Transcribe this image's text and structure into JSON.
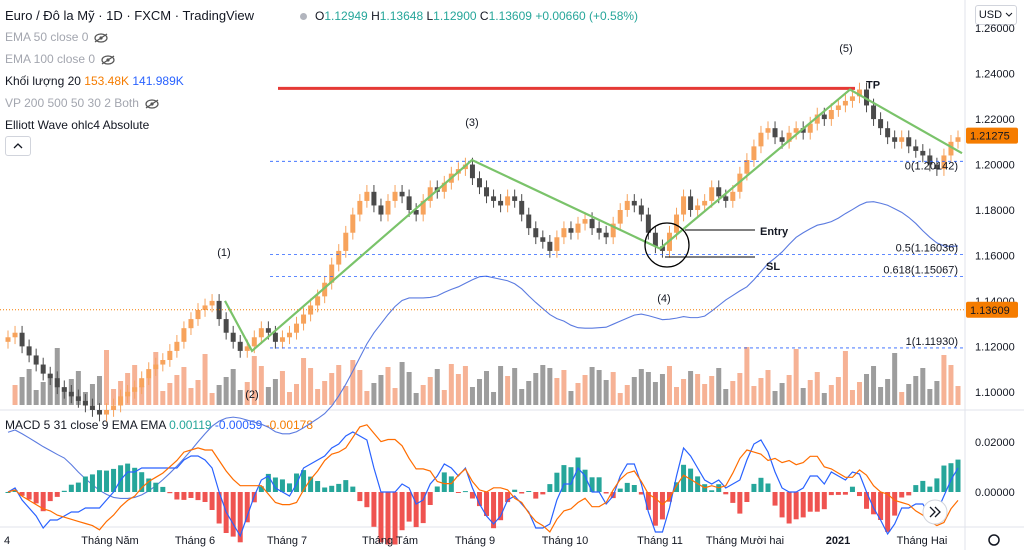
{
  "header": {
    "symbol": "Euro / Đô la Mỹ · 1D · FXCM · TradingView",
    "ohlc": {
      "o_label": "O",
      "o": "1.12949",
      "h_label": "H",
      "h": "1.13648",
      "l_label": "L",
      "l": "1.12900",
      "c_label": "C",
      "c": "1.13609",
      "change": "+0.00660 (+0.58%)"
    },
    "ema50": "EMA 50 close 0",
    "ema100": "EMA 100 close 0",
    "volume_label": "Khối lượng 20",
    "volume_val1": "153.48K",
    "volume_val2": "141.989K",
    "vp": "VP 200 500 50 30 2 Both",
    "elliott": "Elliott Wave ohlc4 Absolute",
    "collapse_icon": "chevron-up-icon"
  },
  "currency_button": "USD",
  "macd": {
    "label": "MACD 5 31 close 9 EMA EMA",
    "v1": "0.00119",
    "v2": "-0.00059",
    "v3": "-0.00178"
  },
  "colors": {
    "up": "#f7a35c",
    "down": "#4a4a4a",
    "wave": "#7ac36a",
    "tp_line": "#e53935",
    "fib": "#2962ff",
    "price_tag": "#f57c00",
    "macd_line": "#2962ff",
    "signal_line": "#ff6d00",
    "hist_up": "#26a69a",
    "hist_down": "#ef5350"
  },
  "chart_data": {
    "type": "candlestick",
    "price_axis": {
      "ticks": [
        "1.26000",
        "1.24000",
        "1.22000",
        "1.20000",
        "1.18000",
        "1.16000",
        "1.14000",
        "1.12000",
        "1.10000"
      ],
      "range": [
        1.092,
        1.268
      ]
    },
    "macd_axis": {
      "ticks": [
        "0.02000",
        "0.00000"
      ]
    },
    "x_ticks": [
      "4",
      "Tháng Năm",
      "Tháng 6",
      "Tháng 7",
      "Tháng Tám",
      "Tháng 9",
      "Tháng 10",
      "Tháng 11",
      "Tháng Mười hai",
      "2021",
      "Tháng Hai"
    ],
    "price_tags": [
      {
        "value": "1.21275",
        "color": "#f57c00"
      },
      {
        "value": "1.13609",
        "color": "#f57c00"
      }
    ],
    "wave_labels": [
      "(1)",
      "(2)",
      "(3)",
      "(4)",
      "(5)"
    ],
    "wave_points": [
      [
        1.088,
        1.14
      ],
      [
        1.117,
        1.118
      ],
      [
        1.226,
        1.202
      ],
      [
        1.392,
        1.163
      ],
      [
        1.648,
        1.233
      ],
      [
        1.8,
        1.205
      ]
    ],
    "tp": {
      "label": "TP",
      "value": 1.2335
    },
    "entry_label": "Entry",
    "sl_label": "SL",
    "fib_levels": [
      {
        "label": "0(1.20142)",
        "value": 1.20142
      },
      {
        "label": "0.5(1.16036)",
        "value": 1.16036
      },
      {
        "label": "0.618(1.15067)",
        "value": 1.15067
      },
      {
        "label": "1(1.11930)",
        "value": 1.1193
      }
    ],
    "close_series": [
      1.124,
      1.126,
      1.12,
      1.116,
      1.112,
      1.108,
      1.106,
      1.102,
      1.1,
      1.098,
      1.096,
      1.094,
      1.092,
      1.09,
      1.092,
      1.094,
      1.098,
      1.1,
      1.102,
      1.106,
      1.11,
      1.112,
      1.114,
      1.118,
      1.122,
      1.128,
      1.132,
      1.136,
      1.138,
      1.14,
      1.132,
      1.126,
      1.122,
      1.118,
      1.12,
      1.124,
      1.128,
      1.126,
      1.122,
      1.124,
      1.126,
      1.13,
      1.134,
      1.138,
      1.142,
      1.148,
      1.156,
      1.162,
      1.17,
      1.178,
      1.184,
      1.188,
      1.182,
      1.178,
      1.184,
      1.188,
      1.186,
      1.18,
      1.178,
      1.184,
      1.19,
      1.188,
      1.192,
      1.196,
      1.198,
      1.2,
      1.194,
      1.19,
      1.186,
      1.184,
      1.182,
      1.186,
      1.184,
      1.178,
      1.172,
      1.168,
      1.166,
      1.162,
      1.168,
      1.172,
      1.17,
      1.174,
      1.176,
      1.172,
      1.17,
      1.168,
      1.174,
      1.18,
      1.184,
      1.182,
      1.178,
      1.17,
      1.164,
      1.162,
      1.17,
      1.178,
      1.186,
      1.18,
      1.182,
      1.184,
      1.19,
      1.186,
      1.184,
      1.188,
      1.196,
      1.202,
      1.208,
      1.214,
      1.216,
      1.212,
      1.21,
      1.214,
      1.216,
      1.214,
      1.218,
      1.222,
      1.22,
      1.224,
      1.226,
      1.228,
      1.23,
      1.233,
      1.226,
      1.22,
      1.216,
      1.212,
      1.21,
      1.212,
      1.208,
      1.206,
      1.204,
      1.2,
      1.198,
      1.204,
      1.21,
      1.212
    ]
  }
}
